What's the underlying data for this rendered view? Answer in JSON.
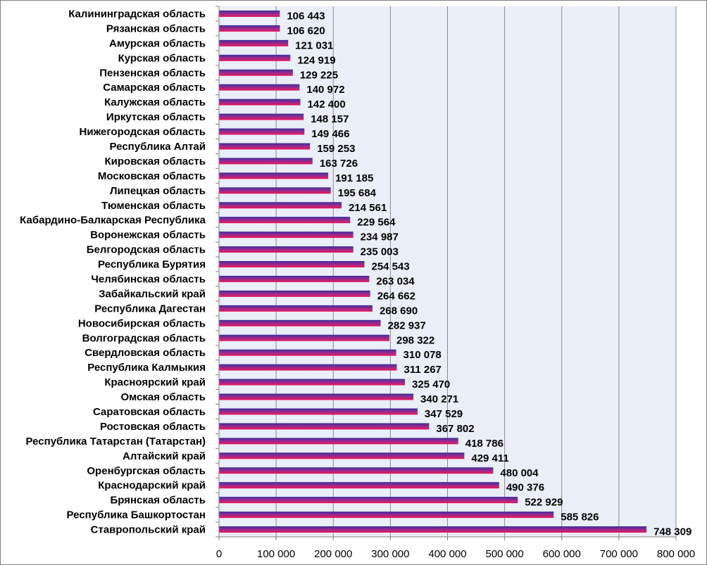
{
  "chart_data": {
    "type": "bar",
    "orientation": "horizontal",
    "categories": [
      "Калининградская область",
      "Рязанская  область",
      "Амурская область",
      "Курская область",
      "Пензенская область",
      "Самарская область",
      "Калужская область",
      "Иркутская  область",
      "Нижегородская область",
      "Республика Алтай",
      "Кировская область",
      "Московская область",
      "Липецкая область",
      "Тюменская область",
      "Кабардино-Балкарская  Республика",
      "Воронежская область",
      "Белгородская область",
      "Республика Бурятия",
      "Челябинская область",
      "Забайкальский край",
      "Республика Дагестан",
      "Новосибирская область",
      "Волгоградская область",
      "Свердловская область",
      "Республика Калмыкия",
      "Красноярский край",
      "Омская  область",
      "Саратовская  область",
      "Ростовская  область",
      "Республика Татарстан  (Татарстан)",
      "Алтайский край",
      "Оренбургская область",
      "Краснодарский край",
      "Брянская  область",
      "Республика Башкортостан",
      "Ставропольский край"
    ],
    "values": [
      106443,
      106620,
      121031,
      124919,
      129225,
      140972,
      142400,
      148157,
      149466,
      159253,
      163726,
      191185,
      195684,
      214561,
      229564,
      234987,
      235003,
      254543,
      263034,
      264662,
      268690,
      282937,
      298322,
      310078,
      311267,
      325470,
      340271,
      347529,
      367802,
      418786,
      429411,
      480004,
      490376,
      522929,
      585826,
      748309
    ],
    "value_labels": [
      "106 443",
      "106 620",
      "121 031",
      "124 919",
      "129 225",
      "140 972",
      "142 400",
      "148 157",
      "149 466",
      "159 253",
      "163 726",
      "191 185",
      "195 684",
      "214 561",
      "229 564",
      "234 987",
      "235 003",
      "254 543",
      "263 034",
      "264 662",
      "268 690",
      "282 937",
      "298 322",
      "310 078",
      "311 267",
      "325 470",
      "340 271",
      "347 529",
      "367 802",
      "418 786",
      "429 411",
      "480 004",
      "490 376",
      "522 929",
      "585 826",
      "748 309"
    ],
    "xlim": [
      0,
      800000
    ],
    "xticks": [
      0,
      100000,
      200000,
      300000,
      400000,
      500000,
      600000,
      700000,
      800000
    ],
    "xtick_labels": [
      "0",
      "100 000",
      "200 000",
      "300 000",
      "400 000",
      "500 000",
      "600 000",
      "700 000",
      "800 000"
    ],
    "title": "",
    "xlabel": "",
    "ylabel": "",
    "grid": "vertical",
    "legend": "none",
    "colors": {
      "plot_background": "#eaeef8",
      "gridline": "#8c8c8c",
      "bar_top": "#3a2d9a",
      "bar_bottom": "#e8185c",
      "axis": "#7f7f7f"
    }
  }
}
